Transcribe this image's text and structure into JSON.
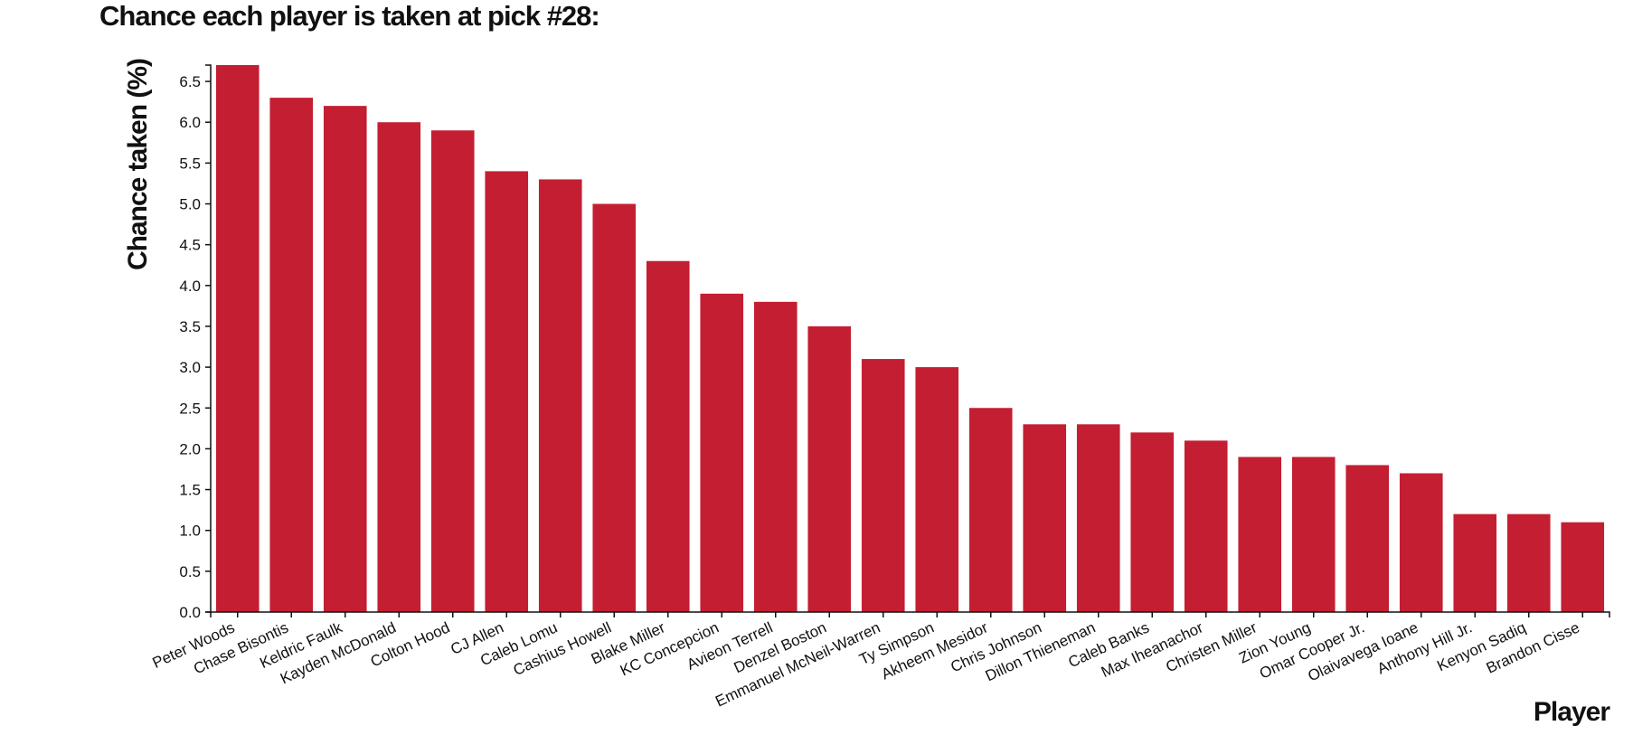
{
  "chart_data": {
    "type": "bar",
    "title": "Chance each player is taken at pick #28:",
    "xlabel": "Player",
    "ylabel": "Chance taken (%)",
    "ylim": [
      0,
      6.7
    ],
    "yticks": [
      "0.0",
      "0.5",
      "1.0",
      "1.5",
      "2.0",
      "2.5",
      "3.0",
      "3.5",
      "4.0",
      "4.5",
      "5.0",
      "5.5",
      "6.0",
      "6.5"
    ],
    "bar_color": "#c41e32",
    "categories": [
      "Peter Woods",
      "Chase Bisontis",
      "Keldric Faulk",
      "Kayden McDonald",
      "Colton Hood",
      "CJ Allen",
      "Caleb Lomu",
      "Cashius Howell",
      "Blake Miller",
      "KC Concepcion",
      "Avieon Terrell",
      "Denzel Boston",
      "Emmanuel McNeil-Warren",
      "Ty Simpson",
      "Akheem Mesidor",
      "Chris Johnson",
      "Dillon Thieneman",
      "Caleb Banks",
      "Max Iheanachor",
      "Christen Miller",
      "Zion Young",
      "Omar Cooper Jr.",
      "Olaivavega Ioane",
      "Anthony Hill Jr.",
      "Kenyon Sadiq",
      "Brandon Cisse"
    ],
    "values": [
      6.7,
      6.3,
      6.2,
      6.0,
      5.9,
      5.4,
      5.3,
      5.0,
      4.3,
      3.9,
      3.8,
      3.5,
      3.1,
      3.0,
      2.5,
      2.3,
      2.3,
      2.2,
      2.1,
      1.9,
      1.9,
      1.8,
      1.7,
      1.2,
      1.2,
      1.1
    ]
  }
}
